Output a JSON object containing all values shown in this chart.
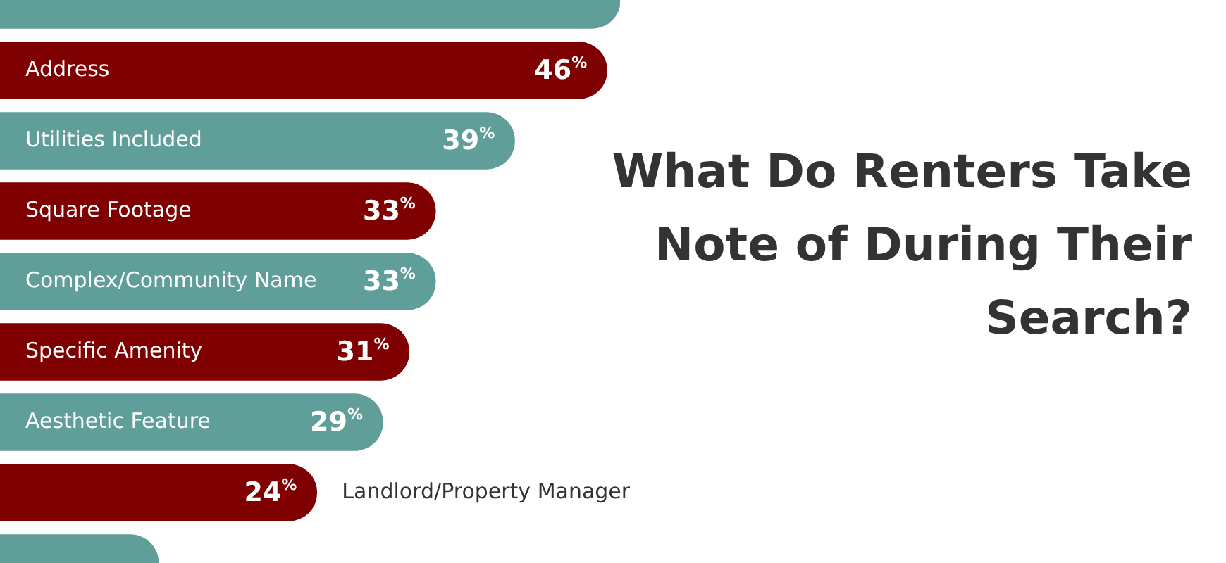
{
  "chart_data": {
    "type": "bar",
    "orientation": "horizontal",
    "title": "What Do Renters Take Note of During Their Search?",
    "categories": [
      null,
      "Address",
      "Utilities Included",
      "Square Footage",
      "Complex/Community Name",
      "Specific Amenity",
      "Aesthetic Feature",
      "Landlord/Property Manager",
      null
    ],
    "values": [
      47,
      46,
      39,
      33,
      33,
      31,
      29,
      24,
      12
    ],
    "colors": [
      "#5f9e99",
      "#7f0000",
      "#5f9e99",
      "#7f0000",
      "#5f9e99",
      "#7f0000",
      "#5f9e99",
      "#7f0000",
      "#5f9e99"
    ],
    "value_labels": [
      null,
      "46%",
      "39%",
      "33%",
      "33%",
      "31%",
      "29%",
      "24%",
      null
    ],
    "tick_labels": false,
    "legend": false
  }
}
